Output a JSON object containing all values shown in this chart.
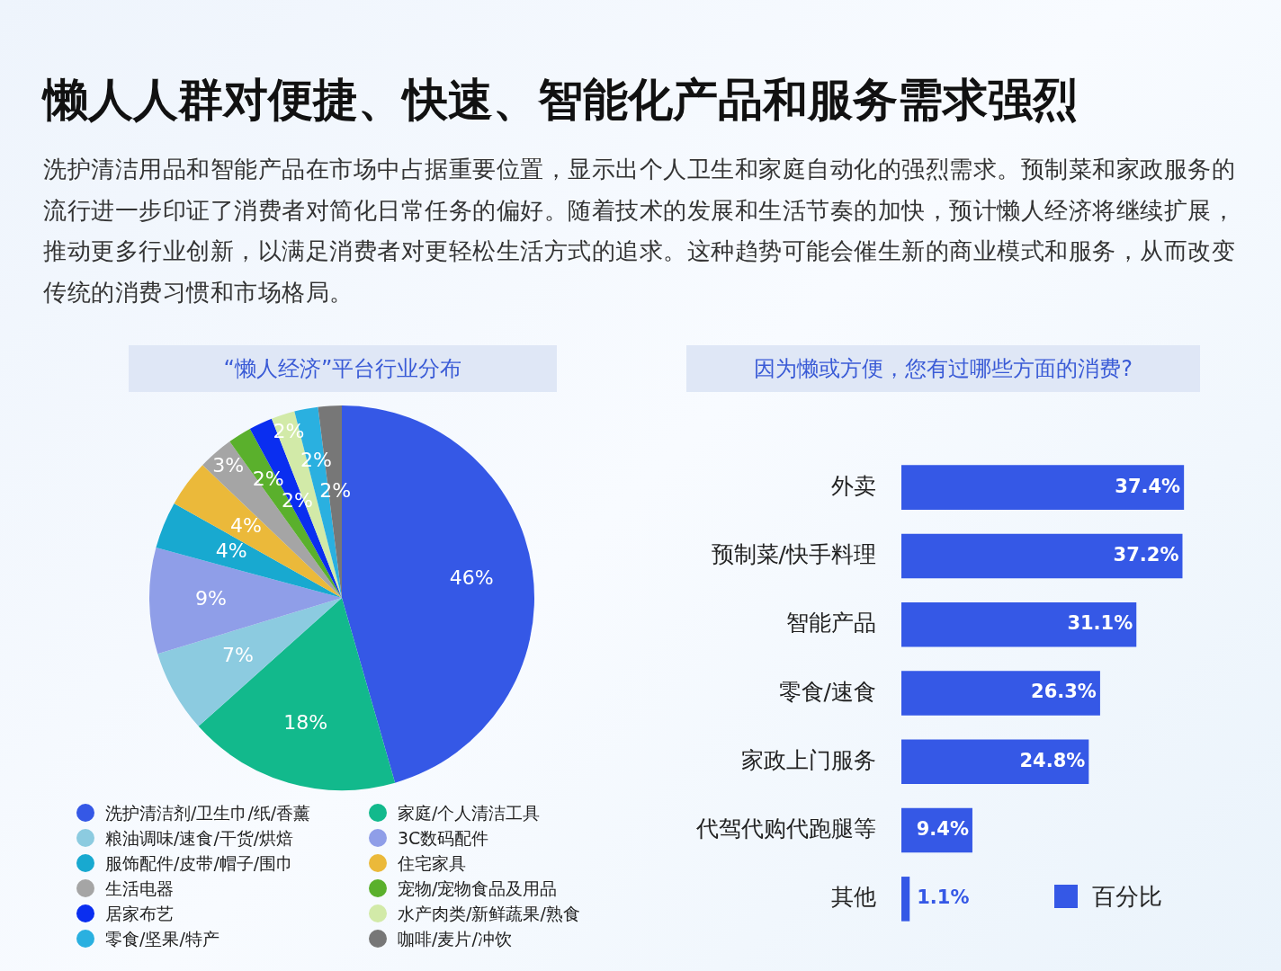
{
  "chart_data": [
    {
      "type": "other",
      "title": "懒人人群对便捷、快速、智能化产品和服务需求强烈",
      "subtitle": "洗护清洁用品和智能产品在市场中占据重要位置，显示出个人卫生和家庭自动化的强烈需求。预制菜和家政服务的流行进一步印证了消费者对简化日常任务的偏好。随着技术的发展和生活节奏的加快，预计懒人经济将继续扩展，推动更多行业创新，以满足消费者对更轻松生活方式的追求。这种趋势可能会催生新的商业模式和服务，从而改变传统的消费习惯和市场格局。"
    },
    {
      "type": "pie",
      "title": "“懒人经济”平台行业分布",
      "categories": [
        "洗护清洁剂/卫生巾/纸/香薰",
        "家庭/个人清洁工具",
        "粮油调味/速食/干货/烘焙",
        "3C数码配件",
        "服饰配件/皮带/帽子/围巾",
        "住宅家具",
        "生活电器",
        "宠物/宠物食品及用品",
        "居家布艺",
        "水产肉类/新鲜蔬果/熟食",
        "零食/坚果/特产",
        "咖啡/麦片/冲饮"
      ],
      "values": [
        46,
        18,
        7,
        9,
        4,
        4,
        3,
        2,
        2,
        2,
        2,
        2
      ],
      "colors": [
        "#3558e6",
        "#12b98c",
        "#8ccbe0",
        "#8f9ee8",
        "#18a9d0",
        "#ebb93a",
        "#a5a5a5",
        "#5ab02c",
        "#0a2ef0",
        "#d2eaa8",
        "#2ab0e0",
        "#777777"
      ],
      "value_labels": [
        "46%",
        "18%",
        "7%",
        "9%",
        "4%",
        "4%",
        "3%",
        "2%",
        "2%",
        "2%",
        "2%",
        "2%"
      ],
      "legend": "bottom"
    },
    {
      "type": "bar",
      "orientation": "horizontal",
      "title": "因为懒或方便，您有过哪些方面的消费?",
      "categories": [
        "外卖",
        "预制菜/快手料理",
        "智能产品",
        "零食/速食",
        "家政上门服务",
        "代驾代购代跑腿等",
        "其他"
      ],
      "series": [
        {
          "name": "百分比",
          "color": "#3558e6",
          "values": [
            37.4,
            37.2,
            31.1,
            26.3,
            24.8,
            9.4,
            1.1
          ],
          "value_labels": [
            "37.4%",
            "37.2%",
            "31.1%",
            "26.3%",
            "24.8%",
            "9.4%",
            "1.1%"
          ]
        }
      ],
      "legend": "bottom right"
    }
  ]
}
